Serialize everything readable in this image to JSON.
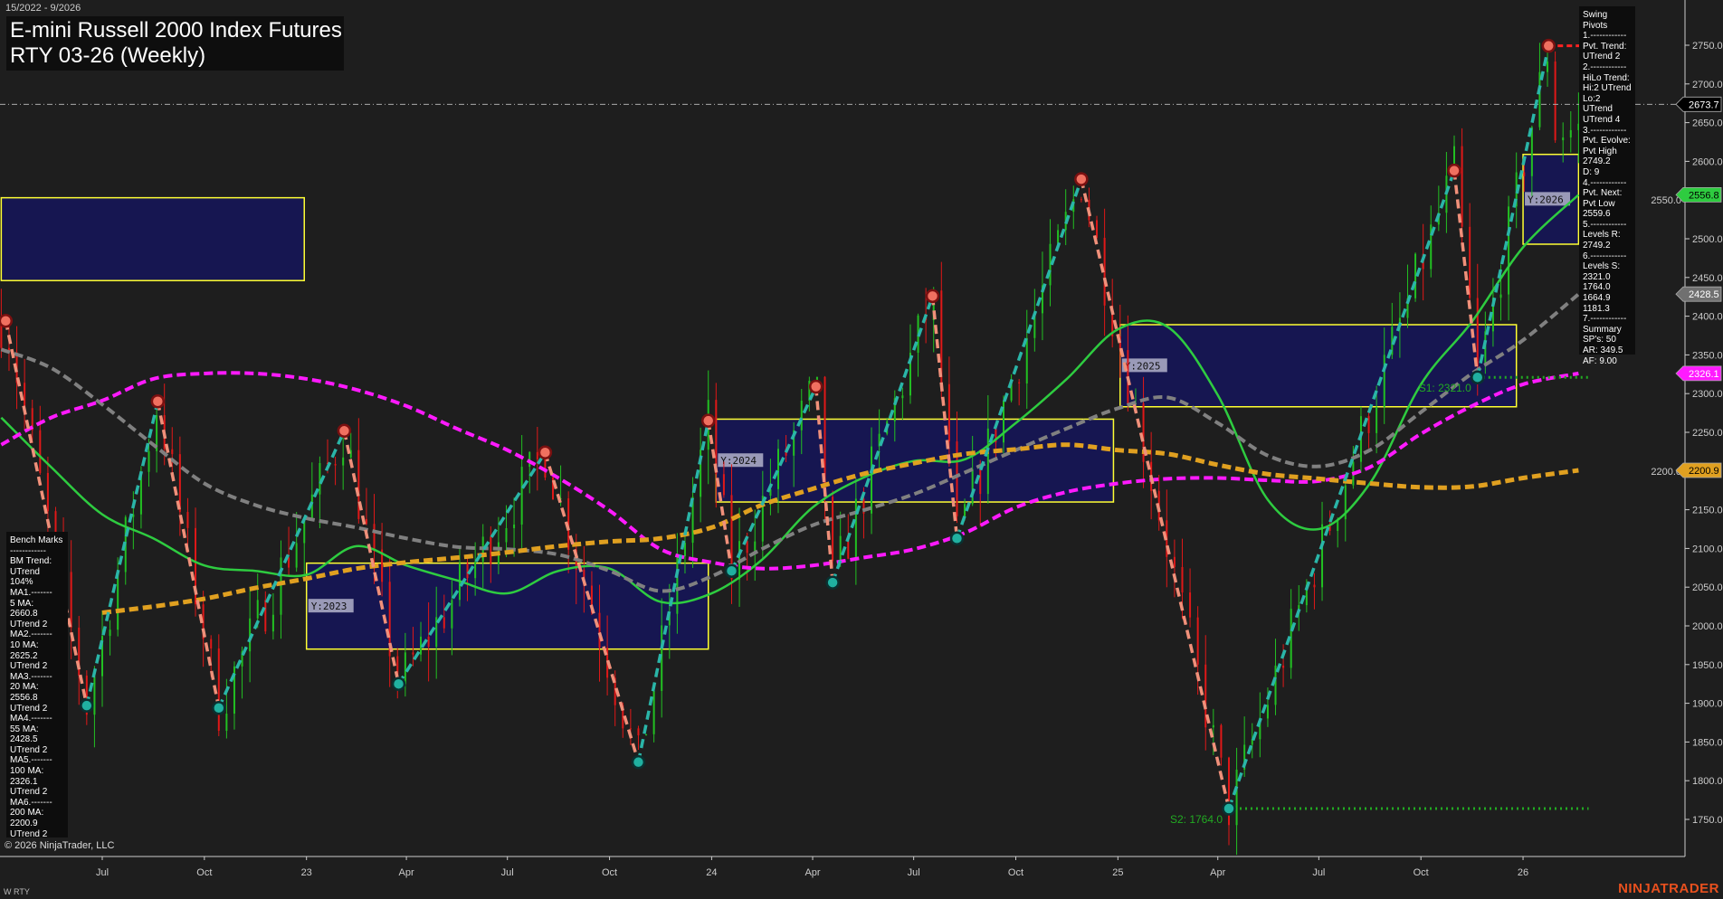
{
  "header": {
    "date_range": "15/2022 - 9/2026",
    "title_line1": "E-mini Russell 2000 Index Futures",
    "title_line2": "RTY 03-26 (Weekly)"
  },
  "swing_panel": {
    "lines": [
      "Swing Pivots",
      "1.------------",
      "Pvt. Trend:",
      "UTrend 2",
      "2.------------",
      "HiLo Trend:",
      "Hi:2 UTrend",
      "Lo:2 UTrend",
      "UTrend 4",
      "3.------------",
      "Pvt. Evolve:",
      "Pvt High",
      "2749.2",
      "D: 9",
      "4.------------",
      "Pvt. Next:",
      "Pvt Low",
      "2559.6",
      "5.------------",
      "Levels R:",
      "2749.2",
      "6.------------",
      "Levels S:",
      "2321.0",
      "1764.0",
      "1664.9",
      "1181.3",
      "7.------------",
      "Summary",
      "SP's: 50",
      "AR: 349.5",
      "AF: 9.00"
    ]
  },
  "bench_panel": {
    "lines": [
      "Bench Marks",
      "------------",
      "BM Trend:",
      "UTrend 104%",
      "MA1.-------",
      "5 MA:",
      "2660.8",
      "UTrend 2",
      "MA2.-------",
      "10 MA:",
      "2625.2",
      "UTrend 2",
      "MA3.-------",
      "20 MA:",
      "2556.8",
      "UTrend 2",
      "MA4.-------",
      "55 MA:",
      "2428.5",
      "UTrend 2",
      "MA5.-------",
      "100 MA:",
      "2326.1",
      "UTrend 2",
      "MA6.-------",
      "200 MA:",
      "2200.9",
      "UTrend 2"
    ]
  },
  "footer": {
    "copyright": "© 2026 NinjaTrader, LLC",
    "symbol": "W RTY",
    "brand": "NINJATRADER"
  },
  "colors": {
    "background": "#1e1e1e",
    "up_leg": "#2ab5a8",
    "down_leg": "#f0907a",
    "ma20": "#2ecc40",
    "ma55": "#808080",
    "ma100": "#ff1aff",
    "ma200": "#e0a020",
    "box_fill": "#15155a",
    "box_border": "#ffff33",
    "support": "#22aa22",
    "resistance": "#ff2222"
  },
  "chart_data": {
    "type": "candlestick",
    "ylim": [
      1710,
      2800
    ],
    "yticks": [
      1750,
      1800,
      1850,
      1900,
      1950,
      2000,
      2050,
      2100,
      2150,
      2200,
      2250,
      2300,
      2350,
      2400,
      2450,
      2500,
      2550,
      2600,
      2650,
      2700,
      2750
    ],
    "xticks": [
      {
        "label": "Jul",
        "date": "2022-07-01"
      },
      {
        "label": "Oct",
        "date": "2022-10-01"
      },
      {
        "label": "23",
        "date": "2023-01-01"
      },
      {
        "label": "Apr",
        "date": "2023-04-01"
      },
      {
        "label": "Jul",
        "date": "2023-07-01"
      },
      {
        "label": "Oct",
        "date": "2023-10-01"
      },
      {
        "label": "24",
        "date": "2024-01-01"
      },
      {
        "label": "Apr",
        "date": "2024-04-01"
      },
      {
        "label": "Jul",
        "date": "2024-07-01"
      },
      {
        "label": "Oct",
        "date": "2024-10-01"
      },
      {
        "label": "25",
        "date": "2025-01-01"
      },
      {
        "label": "Apr",
        "date": "2025-04-01"
      },
      {
        "label": "Jul",
        "date": "2025-07-01"
      },
      {
        "label": "Oct",
        "date": "2025-10-01"
      },
      {
        "label": "26",
        "date": "2026-01-01"
      }
    ],
    "last_price": 2673.7,
    "price_tags": [
      {
        "value": "2673.7",
        "price": 2673.7,
        "bg": "#000000",
        "fg": "#ffffff"
      },
      {
        "value": "2556.8",
        "price": 2556.8,
        "bg": "#2ecc40",
        "fg": "#000000"
      },
      {
        "value": "2428.5",
        "price": 2428.5,
        "bg": "#707070",
        "fg": "#ffffff"
      },
      {
        "value": "2326.1",
        "price": 2326.1,
        "bg": "#ff1aff",
        "fg": "#ffffff"
      },
      {
        "value": "2200.9",
        "price": 2200.9,
        "bg": "#e0a020",
        "fg": "#000000"
      }
    ],
    "swing_pivots": [
      [
        "2022-04-05",
        2394,
        "H"
      ],
      [
        "2022-06-17",
        1897,
        "L"
      ],
      [
        "2022-08-20",
        2290,
        "H"
      ],
      [
        "2022-10-14",
        1894,
        "L"
      ],
      [
        "2023-02-04",
        2252,
        "H"
      ],
      [
        "2023-03-25",
        1925,
        "L"
      ],
      [
        "2023-08-04",
        2224,
        "H"
      ],
      [
        "2023-10-27",
        1824,
        "L"
      ],
      [
        "2023-12-29",
        2265,
        "H"
      ],
      [
        "2024-01-19",
        2071,
        "L"
      ],
      [
        "2024-04-04",
        2309,
        "H"
      ],
      [
        "2024-04-19",
        2056,
        "L"
      ],
      [
        "2024-07-18",
        2426,
        "H"
      ],
      [
        "2024-08-09",
        2113,
        "L"
      ],
      [
        "2024-11-29",
        2577,
        "H"
      ],
      [
        "2025-04-11",
        1764,
        "L"
      ],
      [
        "2025-10-31",
        2588,
        "H"
      ],
      [
        "2025-11-21",
        2321,
        "L"
      ],
      [
        "2026-01-24",
        2749.2,
        "H"
      ]
    ],
    "last_bar_date": "2026-02-25",
    "levels": [
      {
        "label": "S1: 2321.0",
        "price": 2321.0,
        "from": "2025-11-21",
        "type": "support"
      },
      {
        "label": "S2: 1764.0",
        "price": 1764.0,
        "from": "2025-04-11",
        "type": "support"
      },
      {
        "label": "",
        "price": 2749.2,
        "from": "2026-01-24",
        "type": "resistance"
      }
    ],
    "year_boxes": [
      {
        "label": "",
        "from": "2022-04-01",
        "to": "2022-12-30",
        "high": 2553,
        "low": 2446
      },
      {
        "label": "Y:2023",
        "from": "2023-01-01",
        "to": "2023-12-29",
        "high": 2081,
        "low": 1970
      },
      {
        "label": "Y:2024",
        "from": "2024-01-05",
        "to": "2024-12-28",
        "high": 2267,
        "low": 2160
      },
      {
        "label": "Y:2025",
        "from": "2025-01-03",
        "to": "2025-12-26",
        "high": 2389,
        "low": 2283
      },
      {
        "label": "Y:2026",
        "from": "2026-01-01",
        "to": "2026-02-20",
        "high": 2609,
        "low": 2493
      }
    ],
    "ma_dates": [
      "2022-04-01",
      "2022-05-16",
      "2022-07-01",
      "2022-08-16",
      "2022-10-01",
      "2022-11-16",
      "2023-01-01",
      "2023-02-15",
      "2023-04-01",
      "2023-05-16",
      "2023-07-01",
      "2023-08-16",
      "2023-10-01",
      "2023-11-16",
      "2024-01-01",
      "2024-02-15",
      "2024-04-01",
      "2024-05-16",
      "2024-07-01",
      "2024-08-16",
      "2024-10-01",
      "2024-11-16",
      "2025-01-01",
      "2025-02-15",
      "2025-04-01",
      "2025-05-16",
      "2025-07-01",
      "2025-08-16",
      "2025-10-01",
      "2025-11-16",
      "2026-01-01",
      "2026-02-20"
    ],
    "series": [
      {
        "name": "20 MA",
        "color": "#2ecc40",
        "style": "solid",
        "values": [
          2269,
          2205,
          2144,
          2113,
          2078,
          2071,
          2066,
          2103,
          2078,
          2059,
          2042,
          2071,
          2074,
          2031,
          2042,
          2085,
          2153,
          2191,
          2213,
          2215,
          2262,
          2319,
          2383,
          2386,
          2298,
          2163,
          2125,
          2184,
          2312,
          2393,
          2489,
          2556.8
        ]
      },
      {
        "name": "55 MA",
        "color": "#808080",
        "style": "dash",
        "values": [
          2357,
          2333,
          2286,
          2234,
          2184,
          2156,
          2139,
          2127,
          2113,
          2102,
          2099,
          2092,
          2071,
          2045,
          2064,
          2099,
          2130,
          2149,
          2170,
          2198,
          2227,
          2255,
          2281,
          2295,
          2262,
          2220,
          2206,
          2227,
          2276,
          2326,
          2369,
          2428.5
        ]
      },
      {
        "name": "100 MA",
        "color": "#ff1aff",
        "style": "dash",
        "values": [
          2234,
          2269,
          2291,
          2319,
          2326,
          2326,
          2319,
          2305,
          2284,
          2255,
          2227,
          2191,
          2149,
          2099,
          2082,
          2074,
          2078,
          2088,
          2099,
          2120,
          2153,
          2173,
          2184,
          2190,
          2191,
          2188,
          2187,
          2205,
          2248,
          2284,
          2312,
          2326.1
        ]
      },
      {
        "name": "200 MA",
        "color": "#e0a020",
        "style": "dash",
        "values": [
          null,
          null,
          2017,
          2025,
          2035,
          2049,
          2061,
          2074,
          2082,
          2088,
          2095,
          2103,
          2109,
          2113,
          2127,
          2156,
          2177,
          2196,
          2210,
          2222,
          2228,
          2234,
          2227,
          2222,
          2208,
          2196,
          2190,
          2184,
          2179,
          2180,
          2191,
          2200.9
        ]
      }
    ]
  }
}
